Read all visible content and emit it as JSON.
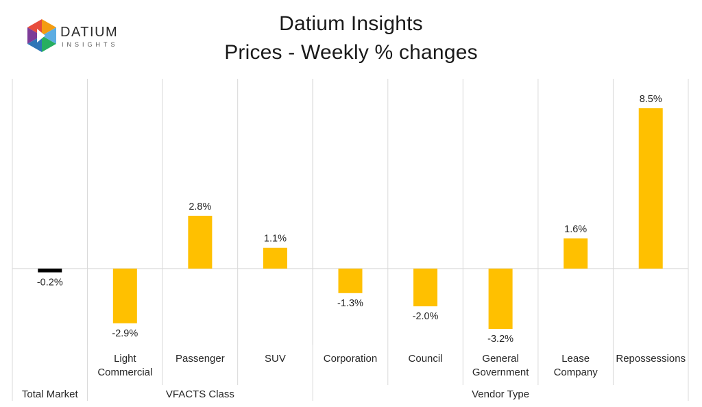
{
  "header": {
    "title_line1": "Datium Insights",
    "title_line2": "Prices - Weekly % changes"
  },
  "logo": {
    "name": "DATIUM",
    "tagline": "INSIGHTS",
    "icon": "datium-cube-logo"
  },
  "colors": {
    "bar": "#FFC000",
    "total_bar": "#000000",
    "grid": "#D9D9D9",
    "logo_blue": "#2E75B6",
    "logo_orange": "#F39C12",
    "logo_purple": "#7D3C98",
    "logo_red": "#E74C3C",
    "logo_green": "#27AE60"
  },
  "chart_data": {
    "type": "bar",
    "title": "Prices - Weekly % changes",
    "categories": [
      [
        "Total Market"
      ],
      [
        "Light",
        "Commercial"
      ],
      [
        "Passenger"
      ],
      [
        "SUV"
      ],
      [
        "Corporation"
      ],
      [
        "Council"
      ],
      [
        "General",
        "Government"
      ],
      [
        "Lease",
        "Company"
      ],
      [
        "Repossessions"
      ]
    ],
    "values": [
      -0.2,
      -2.9,
      2.8,
      1.1,
      -1.3,
      -2.0,
      -3.2,
      1.6,
      8.5
    ],
    "value_labels": [
      "-0.2%",
      "-2.9%",
      "2.8%",
      "1.1%",
      "-1.3%",
      "-2.0%",
      "-3.2%",
      "1.6%",
      "8.5%"
    ],
    "groups": [
      {
        "label": "Total Market",
        "start": 0,
        "end": 0
      },
      {
        "label": "VFACTS Class",
        "start": 1,
        "end": 3
      },
      {
        "label": "Vendor Type",
        "start": 4,
        "end": 8
      }
    ],
    "ylim": [
      -4.4,
      10.0
    ],
    "grid": true,
    "legend": "none"
  }
}
